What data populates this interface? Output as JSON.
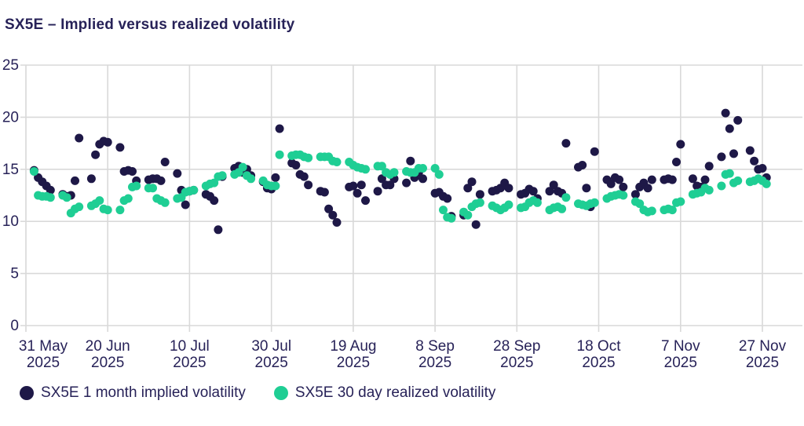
{
  "title": "SX5E – Implied versus realized volatility",
  "colors": {
    "implied": "#1e1847",
    "realized": "#1fce94",
    "grid": "#d9d9d9",
    "text": "#272258",
    "background": "#ffffff"
  },
  "legend": [
    {
      "label": "SX5E 1 month implied volatility",
      "series": "implied"
    },
    {
      "label": "SX5E 30 day realized volatility",
      "series": "realized"
    }
  ],
  "chart_data": {
    "type": "scatter",
    "title": "SX5E – Implied versus realized volatility",
    "xlabel": "",
    "ylabel": "",
    "x_unit": "trading days, offset in calendar days from 31 May 2025",
    "xlim_days": [
      0,
      190
    ],
    "ylim": [
      0,
      25
    ],
    "grid": true,
    "legend_position": "bottom",
    "y_ticks": [
      0,
      5,
      10,
      15,
      20,
      25
    ],
    "x_ticks": [
      {
        "day": 0,
        "label": [
          "31 May",
          "2025"
        ]
      },
      {
        "day": 20,
        "label": [
          "20 Jun",
          "2025"
        ]
      },
      {
        "day": 40,
        "label": [
          "10 Jul",
          "2025"
        ]
      },
      {
        "day": 60,
        "label": [
          "30 Jul",
          "2025"
        ]
      },
      {
        "day": 80,
        "label": [
          "19 Aug",
          "2025"
        ]
      },
      {
        "day": 100,
        "label": [
          "8 Sep",
          "2025"
        ]
      },
      {
        "day": 120,
        "label": [
          "28 Sep",
          "2025"
        ]
      },
      {
        "day": 140,
        "label": [
          "18 Oct",
          "2025"
        ]
      },
      {
        "day": 160,
        "label": [
          "7 Nov",
          "2025"
        ]
      },
      {
        "day": 180,
        "label": [
          "27 Nov",
          "2025"
        ]
      }
    ],
    "series": [
      {
        "name": "SX5E 1 month implied volatility",
        "color_key": "implied",
        "point_name": "implied-volatility-point",
        "points": [
          [
            2,
            14.9
          ],
          [
            3,
            14.2
          ],
          [
            4,
            13.8
          ],
          [
            5,
            13.4
          ],
          [
            6,
            13.0
          ],
          [
            9,
            12.6
          ],
          [
            10,
            12.4
          ],
          [
            11,
            12.5
          ],
          [
            12,
            13.9
          ],
          [
            13,
            18.0
          ],
          [
            16,
            14.1
          ],
          [
            17,
            16.4
          ],
          [
            18,
            17.4
          ],
          [
            19,
            17.7
          ],
          [
            20,
            17.6
          ],
          [
            23,
            17.1
          ],
          [
            24,
            14.8
          ],
          [
            25,
            14.9
          ],
          [
            26,
            14.8
          ],
          [
            27,
            13.9
          ],
          [
            30,
            14.0
          ],
          [
            31,
            14.1
          ],
          [
            32,
            14.1
          ],
          [
            33,
            13.9
          ],
          [
            34,
            15.7
          ],
          [
            37,
            14.6
          ],
          [
            38,
            13.0
          ],
          [
            39,
            11.6
          ],
          [
            40,
            12.9
          ],
          [
            41,
            13.0
          ],
          [
            44,
            12.6
          ],
          [
            45,
            12.4
          ],
          [
            46,
            12.0
          ],
          [
            47,
            9.2
          ],
          [
            48,
            14.3
          ],
          [
            51,
            15.1
          ],
          [
            52,
            15.3
          ],
          [
            53,
            14.7
          ],
          [
            54,
            15.0
          ],
          [
            55,
            14.4
          ],
          [
            58,
            13.8
          ],
          [
            59,
            13.2
          ],
          [
            60,
            13.1
          ],
          [
            61,
            14.2
          ],
          [
            62,
            18.9
          ],
          [
            65,
            15.6
          ],
          [
            66,
            15.4
          ],
          [
            67,
            14.5
          ],
          [
            68,
            14.3
          ],
          [
            69,
            13.5
          ],
          [
            72,
            12.9
          ],
          [
            73,
            12.8
          ],
          [
            74,
            11.2
          ],
          [
            75,
            10.6
          ],
          [
            76,
            9.9
          ],
          [
            79,
            13.3
          ],
          [
            80,
            13.4
          ],
          [
            81,
            12.7
          ],
          [
            82,
            13.5
          ],
          [
            83,
            12.0
          ],
          [
            86,
            12.9
          ],
          [
            87,
            14.1
          ],
          [
            88,
            13.5
          ],
          [
            89,
            13.5
          ],
          [
            90,
            14.1
          ],
          [
            93,
            13.7
          ],
          [
            94,
            15.8
          ],
          [
            95,
            14.2
          ],
          [
            96,
            14.7
          ],
          [
            97,
            14.1
          ],
          [
            100,
            12.7
          ],
          [
            101,
            12.8
          ],
          [
            102,
            12.4
          ],
          [
            103,
            12.2
          ],
          [
            104,
            10.5
          ],
          [
            107,
            10.6
          ],
          [
            108,
            13.2
          ],
          [
            109,
            13.8
          ],
          [
            110,
            9.7
          ],
          [
            111,
            12.6
          ],
          [
            114,
            12.9
          ],
          [
            115,
            13.0
          ],
          [
            116,
            13.2
          ],
          [
            117,
            13.7
          ],
          [
            118,
            13.2
          ],
          [
            121,
            12.6
          ],
          [
            122,
            12.7
          ],
          [
            123,
            13.1
          ],
          [
            124,
            12.9
          ],
          [
            125,
            12.2
          ],
          [
            128,
            12.9
          ],
          [
            129,
            13.5
          ],
          [
            130,
            12.9
          ],
          [
            131,
            12.7
          ],
          [
            132,
            17.5
          ],
          [
            135,
            15.2
          ],
          [
            136,
            15.4
          ],
          [
            137,
            13.2
          ],
          [
            138,
            11.4
          ],
          [
            139,
            16.7
          ],
          [
            142,
            14.0
          ],
          [
            143,
            13.6
          ],
          [
            144,
            14.2
          ],
          [
            145,
            14.0
          ],
          [
            146,
            13.3
          ],
          [
            149,
            12.6
          ],
          [
            150,
            13.3
          ],
          [
            151,
            13.7
          ],
          [
            152,
            13.2
          ],
          [
            153,
            14.0
          ],
          [
            156,
            14.0
          ],
          [
            157,
            14.1
          ],
          [
            158,
            14.0
          ],
          [
            159,
            15.7
          ],
          [
            160,
            17.4
          ],
          [
            163,
            14.1
          ],
          [
            164,
            13.4
          ],
          [
            165,
            13.3
          ],
          [
            166,
            14.0
          ],
          [
            167,
            15.3
          ],
          [
            170,
            16.2
          ],
          [
            171,
            20.4
          ],
          [
            172,
            18.9
          ],
          [
            173,
            16.5
          ],
          [
            174,
            19.7
          ],
          [
            177,
            16.8
          ],
          [
            178,
            15.8
          ],
          [
            179,
            15.0
          ],
          [
            180,
            15.1
          ],
          [
            181,
            14.2
          ]
        ]
      },
      {
        "name": "SX5E 30 day realized volatility",
        "color_key": "realized",
        "point_name": "realized-volatility-point",
        "points": [
          [
            2,
            14.8
          ],
          [
            3,
            12.5
          ],
          [
            4,
            12.4
          ],
          [
            5,
            12.4
          ],
          [
            6,
            12.3
          ],
          [
            9,
            12.5
          ],
          [
            10,
            12.3
          ],
          [
            11,
            10.8
          ],
          [
            12,
            11.2
          ],
          [
            13,
            11.4
          ],
          [
            16,
            11.5
          ],
          [
            17,
            11.7
          ],
          [
            18,
            12.0
          ],
          [
            19,
            11.2
          ],
          [
            20,
            11.1
          ],
          [
            23,
            11.1
          ],
          [
            24,
            12.0
          ],
          [
            25,
            12.2
          ],
          [
            26,
            13.3
          ],
          [
            27,
            13.4
          ],
          [
            30,
            13.2
          ],
          [
            31,
            13.2
          ],
          [
            32,
            12.2
          ],
          [
            33,
            12.0
          ],
          [
            34,
            11.8
          ],
          [
            37,
            12.2
          ],
          [
            38,
            12.3
          ],
          [
            39,
            12.8
          ],
          [
            40,
            12.9
          ],
          [
            41,
            13.0
          ],
          [
            44,
            13.4
          ],
          [
            45,
            13.6
          ],
          [
            46,
            13.7
          ],
          [
            47,
            14.3
          ],
          [
            48,
            14.4
          ],
          [
            51,
            14.5
          ],
          [
            52,
            14.7
          ],
          [
            53,
            15.2
          ],
          [
            54,
            14.4
          ],
          [
            55,
            14.1
          ],
          [
            58,
            13.9
          ],
          [
            59,
            13.5
          ],
          [
            60,
            13.4
          ],
          [
            61,
            13.4
          ],
          [
            62,
            16.4
          ],
          [
            65,
            16.3
          ],
          [
            66,
            16.4
          ],
          [
            67,
            16.4
          ],
          [
            68,
            16.2
          ],
          [
            69,
            16.1
          ],
          [
            72,
            16.2
          ],
          [
            73,
            16.2
          ],
          [
            74,
            16.2
          ],
          [
            75,
            15.8
          ],
          [
            76,
            15.7
          ],
          [
            79,
            15.7
          ],
          [
            80,
            15.4
          ],
          [
            81,
            15.2
          ],
          [
            82,
            15.1
          ],
          [
            83,
            15.0
          ],
          [
            86,
            15.3
          ],
          [
            87,
            15.3
          ],
          [
            88,
            14.7
          ],
          [
            89,
            14.5
          ],
          [
            90,
            14.7
          ],
          [
            93,
            14.8
          ],
          [
            94,
            14.7
          ],
          [
            95,
            14.7
          ],
          [
            96,
            15.1
          ],
          [
            97,
            15.1
          ],
          [
            100,
            15.1
          ],
          [
            101,
            14.5
          ],
          [
            102,
            11.1
          ],
          [
            103,
            10.4
          ],
          [
            104,
            10.3
          ],
          [
            107,
            10.9
          ],
          [
            108,
            10.6
          ],
          [
            109,
            11.4
          ],
          [
            110,
            11.7
          ],
          [
            111,
            11.8
          ],
          [
            114,
            11.5
          ],
          [
            115,
            11.3
          ],
          [
            116,
            11.1
          ],
          [
            117,
            11.3
          ],
          [
            118,
            11.6
          ],
          [
            121,
            11.3
          ],
          [
            122,
            11.4
          ],
          [
            123,
            11.8
          ],
          [
            124,
            12.0
          ],
          [
            125,
            11.8
          ],
          [
            128,
            11.1
          ],
          [
            129,
            11.3
          ],
          [
            130,
            11.4
          ],
          [
            131,
            11.2
          ],
          [
            132,
            12.3
          ],
          [
            135,
            11.7
          ],
          [
            136,
            11.6
          ],
          [
            137,
            11.5
          ],
          [
            138,
            11.7
          ],
          [
            139,
            11.8
          ],
          [
            142,
            12.2
          ],
          [
            143,
            12.4
          ],
          [
            144,
            12.5
          ],
          [
            145,
            12.6
          ],
          [
            146,
            12.5
          ],
          [
            149,
            11.9
          ],
          [
            150,
            11.7
          ],
          [
            151,
            11.1
          ],
          [
            152,
            10.9
          ],
          [
            153,
            11.0
          ],
          [
            156,
            11.1
          ],
          [
            157,
            11.2
          ],
          [
            158,
            11.1
          ],
          [
            159,
            11.8
          ],
          [
            160,
            11.9
          ],
          [
            163,
            12.6
          ],
          [
            164,
            12.7
          ],
          [
            165,
            12.8
          ],
          [
            166,
            13.2
          ],
          [
            167,
            13.0
          ],
          [
            170,
            13.4
          ],
          [
            171,
            14.5
          ],
          [
            172,
            14.6
          ],
          [
            173,
            13.7
          ],
          [
            174,
            13.9
          ],
          [
            177,
            13.8
          ],
          [
            178,
            13.9
          ],
          [
            179,
            14.1
          ],
          [
            180,
            13.9
          ],
          [
            181,
            13.6
          ]
        ]
      }
    ]
  }
}
